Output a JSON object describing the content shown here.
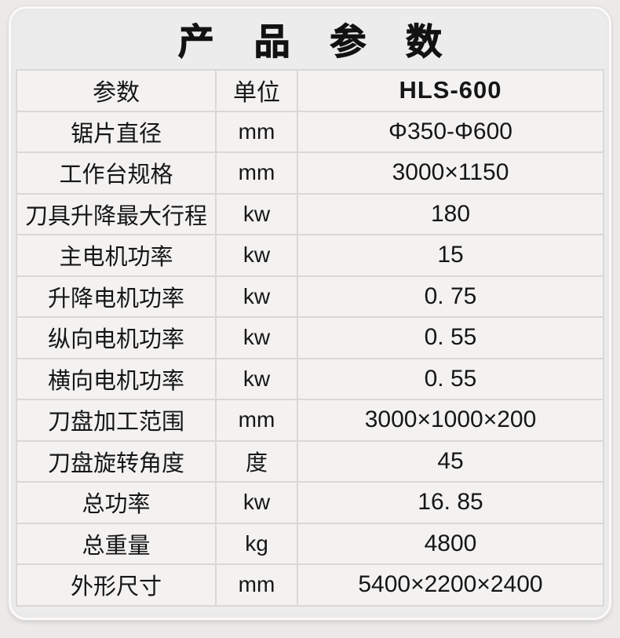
{
  "title": "产 品 参 数",
  "table": {
    "headers": [
      "参数",
      "单位",
      "HLS-600"
    ],
    "rows": [
      {
        "param": "锯片直径",
        "unit": "mm",
        "value": "Φ350-Φ600"
      },
      {
        "param": "工作台规格",
        "unit": "mm",
        "value": "3000×1150"
      },
      {
        "param": "刀具升降最大行程",
        "unit": "kw",
        "value": "180"
      },
      {
        "param": "主电机功率",
        "unit": "kw",
        "value": "15"
      },
      {
        "param": "升降电机功率",
        "unit": "kw",
        "value": "0. 75"
      },
      {
        "param": "纵向电机功率",
        "unit": "kw",
        "value": "0. 55"
      },
      {
        "param": "横向电机功率",
        "unit": "kw",
        "value": "0. 55"
      },
      {
        "param": "刀盘加工范围",
        "unit": "mm",
        "value": "3000×1000×200"
      },
      {
        "param": "刀盘旋转角度",
        "unit": "度",
        "value": "45"
      },
      {
        "param": "总功率",
        "unit": "kw",
        "value": "16. 85"
      },
      {
        "param": "总重量",
        "unit": "kg",
        "value": "4800"
      },
      {
        "param": "外形尺寸",
        "unit": "mm",
        "value": "5400×2200×2400"
      }
    ]
  },
  "colors": {
    "page_bg": "#ebeae9",
    "card_bg": "#edecec",
    "card_border": "#fbfaf9",
    "cell_bg": "#f3f2f1",
    "cell_border": "#d9d8d7",
    "text": "#161616"
  }
}
